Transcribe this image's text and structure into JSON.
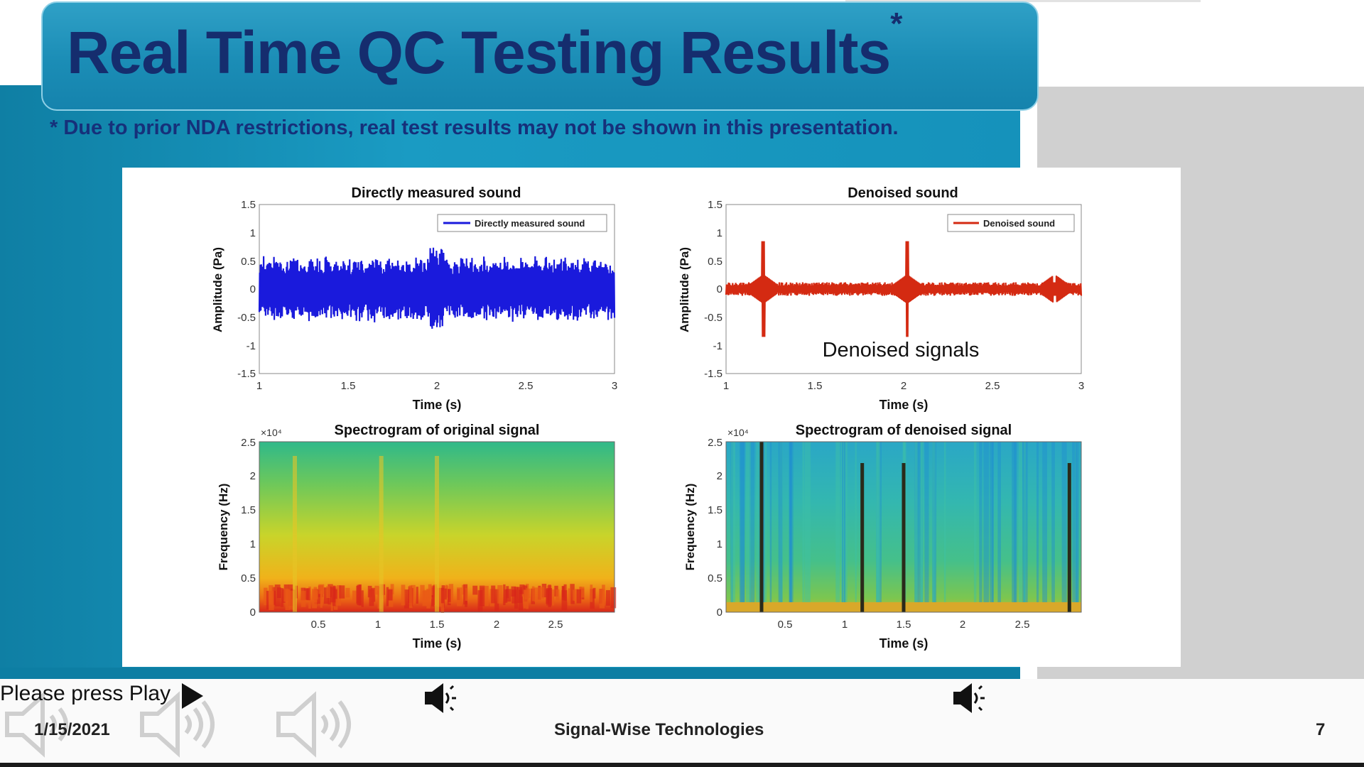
{
  "slide": {
    "title": "Real Time QC Testing Results",
    "title_mark": "*",
    "note": "* Due to prior NDA restrictions, real test results may not be shown in this presentation."
  },
  "charts": {
    "tl": {
      "title": "Directly measured sound",
      "legend": "Directly measured sound",
      "xlabel": "Time (s)",
      "ylabel": "Amplitude (Pa)",
      "xticks": [
        "1",
        "1.5",
        "2",
        "2.5",
        "3"
      ],
      "yticks": [
        "1.5",
        "1",
        "0.5",
        "0",
        "-0.5",
        "-1",
        "-1.5"
      ]
    },
    "tr": {
      "title": "Denoised sound",
      "legend": "Denoised sound",
      "xlabel": "Time (s)",
      "ylabel": "Amplitude (Pa)",
      "annotation": "Denoised signals",
      "xticks": [
        "1",
        "1.5",
        "2",
        "2.5",
        "3"
      ],
      "yticks": [
        "1.5",
        "1",
        "0.5",
        "0",
        "-0.5",
        "-1",
        "-1.5"
      ]
    },
    "bl": {
      "title": "Spectrogram of original signal",
      "xlabel": "Time (s)",
      "ylabel": "Frequency (Hz)",
      "exponent": "×10⁴",
      "xticks": [
        "0.5",
        "1",
        "1.5",
        "2",
        "2.5"
      ],
      "yticks": [
        "2.5",
        "2",
        "1.5",
        "1",
        "0.5",
        "0"
      ]
    },
    "br": {
      "title": "Spectrogram of denoised signal",
      "xlabel": "Time (s)",
      "ylabel": "Frequency (Hz)",
      "exponent": "×10⁴",
      "xticks": [
        "0.5",
        "1",
        "1.5",
        "2",
        "2.5"
      ],
      "yticks": [
        "2.5",
        "2",
        "1.5",
        "1",
        "0.5",
        "0"
      ]
    }
  },
  "chart_data": [
    {
      "type": "line",
      "title": "Directly measured sound",
      "xlabel": "Time (s)",
      "ylabel": "Amplitude (Pa)",
      "xlim": [
        1,
        3
      ],
      "ylim": [
        -1.5,
        1.5
      ],
      "series": [
        {
          "name": "Directly measured sound",
          "color": "#1a1adc",
          "amplitude_range": [
            -0.6,
            0.8
          ]
        }
      ]
    },
    {
      "type": "line",
      "title": "Denoised sound",
      "xlabel": "Time (s)",
      "ylabel": "Amplitude (Pa)",
      "xlim": [
        1,
        3
      ],
      "ylim": [
        -1.5,
        1.5
      ],
      "series": [
        {
          "name": "Denoised sound",
          "color": "#d42a12",
          "spike_times": [
            1.21,
            2.02,
            2.85
          ]
        }
      ]
    },
    {
      "type": "heatmap",
      "title": "Spectrogram of original signal",
      "xlabel": "Time (s)",
      "ylabel": "Frequency (Hz)",
      "ylim": [
        0,
        25000
      ]
    },
    {
      "type": "heatmap",
      "title": "Spectrogram of denoised signal",
      "xlabel": "Time (s)",
      "ylabel": "Frequency (Hz)",
      "ylim": [
        0,
        25000
      ],
      "streak_times": [
        0.3,
        1.15,
        1.5,
        2.9
      ]
    }
  ],
  "footer": {
    "press_play": "Please press Play",
    "date": "1/15/2021",
    "company": "Signal-Wise Technologies",
    "page": "7"
  }
}
